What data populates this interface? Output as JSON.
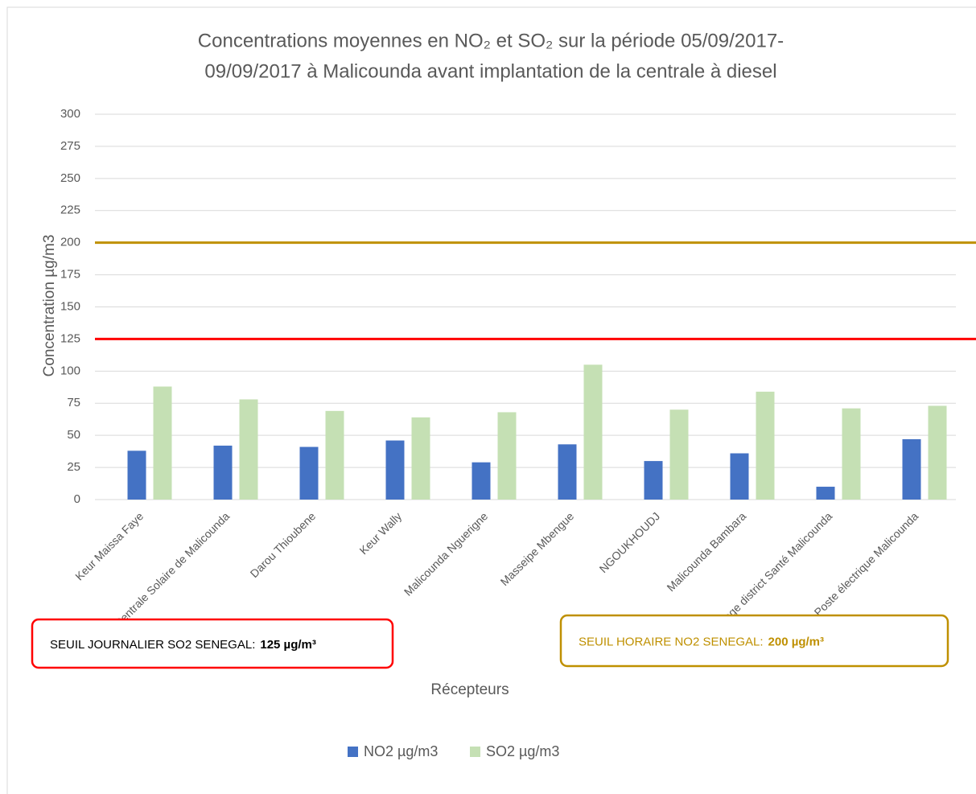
{
  "chart_data": {
    "type": "bar",
    "title": [
      "Concentrations moyennes en NO₂ et SO₂ sur la période 05/09/2017-",
      "09/09/2017 à Malicounda avant implantation de la centrale à diesel"
    ],
    "x_label": "Récepteurs",
    "y_label": "Concentration µg/m3",
    "categories": [
      "Keur Maissa Faye",
      "Centrale Solaire de Malicounda",
      "Darou Thioubene",
      "Keur Wally",
      "Malicounda Nguerigne",
      "Masseipe Mbengue",
      "NGOUKHOUDJ",
      "Malicounda Bambara",
      "Forage district Santé Malicounda",
      "Poste électrique Malicounda"
    ],
    "series": [
      {
        "name": "NO2 µg/m3",
        "color": "#4472c4",
        "values": [
          38,
          42,
          41,
          46,
          29,
          43,
          30,
          36,
          10,
          47
        ]
      },
      {
        "name": "SO2 µg/m3",
        "color": "#c5e0b4",
        "values": [
          88,
          78,
          69,
          64,
          68,
          105,
          70,
          84,
          71,
          73
        ]
      }
    ],
    "ylim": [
      0,
      300
    ],
    "yticks": [
      0,
      25,
      50,
      75,
      100,
      125,
      150,
      175,
      200,
      225,
      250,
      275,
      300
    ],
    "grid": true,
    "legend": "bottom",
    "reference_lines": [
      {
        "value": 125,
        "color": "#ff0000",
        "label": "SEUIL JOURNALIER SO2 SENEGAL:",
        "value_label": "125 µg/m³"
      },
      {
        "value": 200,
        "color": "#bf9000",
        "label": "SEUIL HORAIRE  NO2 SENEGAL:",
        "value_label": "200 µg/m³"
      }
    ]
  }
}
